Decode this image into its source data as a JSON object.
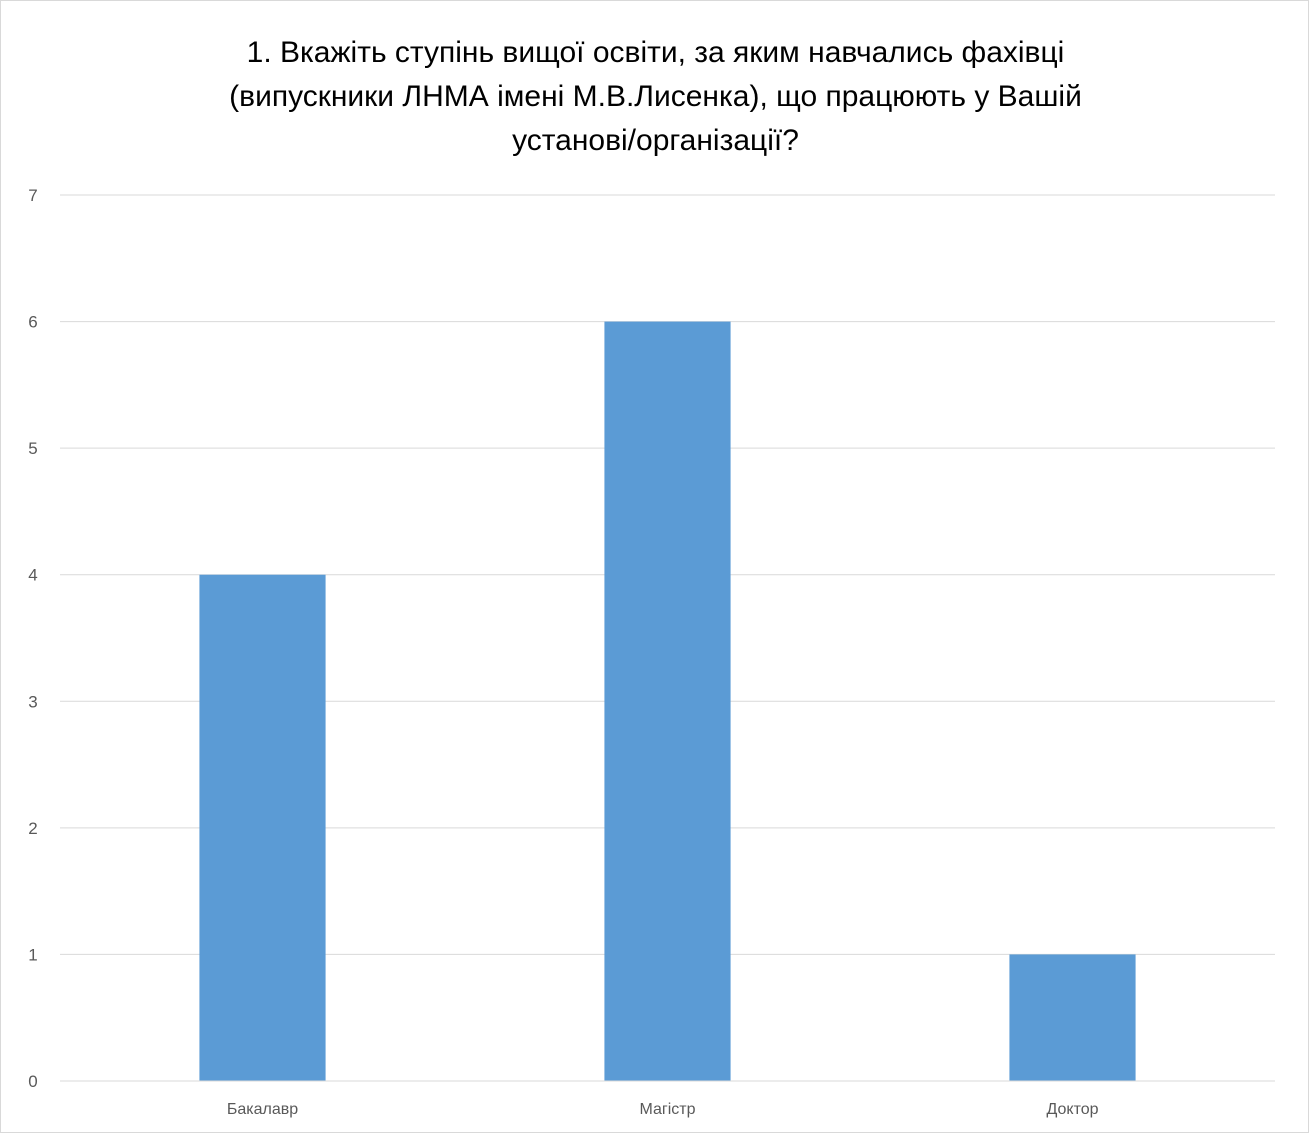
{
  "chart_data": {
    "type": "bar",
    "title_lines": [
      "1. Вкажіть ступінь вищої освіти, за яким навчались фахівці",
      "(випускники ЛНМА імені М.В.Лисенка), що працюють у Вашій",
      "установі/організації?"
    ],
    "categories": [
      "Бакалавр",
      "Магістр",
      "Доктор"
    ],
    "values": [
      4,
      6,
      1
    ],
    "ylim": [
      0,
      7
    ],
    "yticks": [
      0,
      1,
      2,
      3,
      4,
      5,
      6,
      7
    ],
    "grid": true,
    "bar_color": "#5b9bd5",
    "grid_color": "#d9d9d9",
    "xlabel": "",
    "ylabel": ""
  }
}
